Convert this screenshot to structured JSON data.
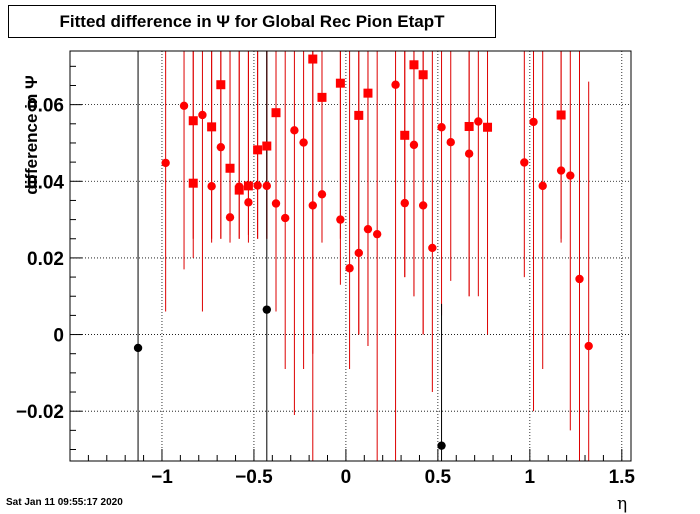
{
  "title": "Fitted difference in  Ψ  for Global Rec Pion EtapT",
  "timestamp": "Sat Jan 11 09:55:17 2020",
  "chart_data": {
    "type": "scatter",
    "xlabel": "η",
    "ylabel": "difference in  Ψ",
    "xlim": [
      -1.5,
      1.55
    ],
    "ylim": [
      -0.033,
      0.074
    ],
    "x_ticks": [
      -1,
      -0.5,
      0,
      0.5,
      1,
      1.5
    ],
    "x_tick_labels": [
      "−1",
      "−0.5",
      "0",
      "0.5",
      "1",
      "1.5"
    ],
    "y_ticks": [
      -0.02,
      0,
      0.02,
      0.04,
      0.06
    ],
    "y_tick_labels": [
      "−0.02",
      "0",
      "0.02",
      "0.04",
      "0.06"
    ],
    "grid": true,
    "series": [
      {
        "color": "#ff0000",
        "err_color": "#dd0000",
        "points": [
          {
            "x": -0.98,
            "y": 0.0448,
            "lo": 0.006,
            "hi": 0.074,
            "m": "c"
          },
          {
            "x": -0.88,
            "y": 0.0597,
            "lo": 0.017,
            "hi": 0.074,
            "m": "c"
          },
          {
            "x": -0.83,
            "y": 0.0558,
            "lo": 0.02,
            "hi": 0.074,
            "m": "s"
          },
          {
            "x": -0.83,
            "y": 0.0395,
            "lo": 0.025,
            "hi": 0.074,
            "m": "s"
          },
          {
            "x": -0.78,
            "y": 0.0573,
            "lo": 0.006,
            "hi": 0.074,
            "m": "c"
          },
          {
            "x": -0.73,
            "y": 0.0542,
            "lo": 0.024,
            "hi": 0.074,
            "m": "s"
          },
          {
            "x": -0.73,
            "y": 0.0387,
            "lo": 0.025,
            "hi": 0.074,
            "m": "c"
          },
          {
            "x": -0.68,
            "y": 0.0652,
            "lo": 0.025,
            "hi": 0.074,
            "m": "s"
          },
          {
            "x": -0.68,
            "y": 0.0489,
            "lo": 0.025,
            "hi": 0.074,
            "m": "c"
          },
          {
            "x": -0.63,
            "y": 0.0434,
            "lo": 0.024,
            "hi": 0.074,
            "m": "s"
          },
          {
            "x": -0.63,
            "y": 0.0306,
            "lo": 0.026,
            "hi": 0.074,
            "m": "c"
          },
          {
            "x": -0.58,
            "y": 0.0377,
            "lo": 0.025,
            "hi": 0.074,
            "m": "s"
          },
          {
            "x": -0.58,
            "y": 0.0386,
            "lo": 0.025,
            "hi": 0.074,
            "m": "c"
          },
          {
            "x": -0.53,
            "y": 0.0388,
            "lo": 0.024,
            "hi": 0.074,
            "m": "s"
          },
          {
            "x": -0.53,
            "y": 0.0345,
            "lo": 0.026,
            "hi": 0.074,
            "m": "c"
          },
          {
            "x": -0.48,
            "y": 0.0482,
            "lo": 0.025,
            "hi": 0.074,
            "m": "s"
          },
          {
            "x": -0.48,
            "y": 0.0389,
            "lo": 0.025,
            "hi": 0.074,
            "m": "c"
          },
          {
            "x": -0.43,
            "y": 0.0492,
            "lo": 0.025,
            "hi": 0.074,
            "m": "s"
          },
          {
            "x": -0.43,
            "y": 0.0388,
            "lo": 0.025,
            "hi": 0.074,
            "m": "c"
          },
          {
            "x": -0.38,
            "y": 0.0579,
            "lo": 0.024,
            "hi": 0.074,
            "m": "s"
          },
          {
            "x": -0.38,
            "y": 0.0342,
            "lo": 0.006,
            "hi": 0.074,
            "m": "c"
          },
          {
            "x": -0.33,
            "y": 0.0304,
            "lo": -0.009,
            "hi": 0.074,
            "m": "c"
          },
          {
            "x": -0.28,
            "y": 0.0533,
            "lo": -0.021,
            "hi": 0.074,
            "m": "c"
          },
          {
            "x": -0.23,
            "y": 0.0501,
            "lo": -0.009,
            "hi": 0.074,
            "m": "c"
          },
          {
            "x": -0.18,
            "y": 0.0719,
            "lo": -0.033,
            "hi": 0.074,
            "m": "s"
          },
          {
            "x": -0.18,
            "y": 0.0337,
            "lo": -0.005,
            "hi": 0.074,
            "m": "c"
          },
          {
            "x": -0.13,
            "y": 0.0619,
            "lo": 0.024,
            "hi": 0.074,
            "m": "s"
          },
          {
            "x": -0.13,
            "y": 0.0366,
            "lo": 0.025,
            "hi": 0.074,
            "m": "c"
          },
          {
            "x": -0.03,
            "y": 0.0656,
            "lo": 0.025,
            "hi": 0.074,
            "m": "s"
          },
          {
            "x": -0.03,
            "y": 0.03,
            "lo": 0.013,
            "hi": 0.074,
            "m": "c"
          },
          {
            "x": 0.02,
            "y": 0.0173,
            "lo": -0.009,
            "hi": 0.074,
            "m": "c"
          },
          {
            "x": 0.07,
            "y": 0.0572,
            "lo": 0.0,
            "hi": 0.074,
            "m": "s"
          },
          {
            "x": 0.07,
            "y": 0.0213,
            "lo": 0.0,
            "hi": 0.074,
            "m": "c"
          },
          {
            "x": 0.12,
            "y": 0.063,
            "lo": -0.003,
            "hi": 0.074,
            "m": "s"
          },
          {
            "x": 0.12,
            "y": 0.0275,
            "lo": -0.003,
            "hi": 0.074,
            "m": "c"
          },
          {
            "x": 0.17,
            "y": 0.0262,
            "lo": -0.033,
            "hi": 0.074,
            "m": "c"
          },
          {
            "x": 0.27,
            "y": 0.0652,
            "lo": -0.033,
            "hi": 0.074,
            "m": "c"
          },
          {
            "x": 0.32,
            "y": 0.052,
            "lo": 0.015,
            "hi": 0.074,
            "m": "s"
          },
          {
            "x": 0.32,
            "y": 0.0343,
            "lo": 0.015,
            "hi": 0.074,
            "m": "c"
          },
          {
            "x": 0.37,
            "y": 0.0704,
            "lo": 0.01,
            "hi": 0.074,
            "m": "s"
          },
          {
            "x": 0.37,
            "y": 0.0495,
            "lo": 0.01,
            "hi": 0.074,
            "m": "c"
          },
          {
            "x": 0.42,
            "y": 0.0678,
            "lo": 0.0,
            "hi": 0.074,
            "m": "s"
          },
          {
            "x": 0.42,
            "y": 0.0337,
            "lo": 0.0,
            "hi": 0.074,
            "m": "c"
          },
          {
            "x": 0.47,
            "y": 0.0226,
            "lo": -0.015,
            "hi": 0.074,
            "m": "c"
          },
          {
            "x": 0.52,
            "y": 0.0541,
            "lo": 0.005,
            "hi": 0.074,
            "m": "c"
          },
          {
            "x": 0.57,
            "y": 0.0502,
            "lo": 0.014,
            "hi": 0.074,
            "m": "c"
          },
          {
            "x": 0.67,
            "y": 0.0543,
            "lo": 0.01,
            "hi": 0.074,
            "m": "s"
          },
          {
            "x": 0.67,
            "y": 0.0472,
            "lo": 0.01,
            "hi": 0.074,
            "m": "c"
          },
          {
            "x": 0.72,
            "y": 0.0556,
            "lo": 0.01,
            "hi": 0.074,
            "m": "c"
          },
          {
            "x": 0.77,
            "y": 0.0541,
            "lo": 0.0,
            "hi": 0.074,
            "m": "s"
          },
          {
            "x": 0.97,
            "y": 0.0449,
            "lo": 0.015,
            "hi": 0.074,
            "m": "c"
          },
          {
            "x": 1.02,
            "y": 0.0555,
            "lo": -0.02,
            "hi": 0.074,
            "m": "c"
          },
          {
            "x": 1.07,
            "y": 0.0388,
            "lo": -0.009,
            "hi": 0.074,
            "m": "c"
          },
          {
            "x": 1.17,
            "y": 0.0573,
            "lo": 0.024,
            "hi": 0.074,
            "m": "s"
          },
          {
            "x": 1.17,
            "y": 0.0428,
            "lo": 0.025,
            "hi": 0.074,
            "m": "c"
          },
          {
            "x": 1.22,
            "y": 0.0415,
            "lo": -0.025,
            "hi": 0.074,
            "m": "c"
          },
          {
            "x": 1.27,
            "y": 0.0145,
            "lo": -0.033,
            "hi": 0.074,
            "m": "c"
          },
          {
            "x": 1.32,
            "y": -0.003,
            "lo": -0.033,
            "hi": 0.066,
            "m": "c"
          }
        ]
      },
      {
        "color": "#000000",
        "err_color": "#000000",
        "points": [
          {
            "x": -1.13,
            "y": -0.0035,
            "lo": -0.033,
            "hi": 0.074,
            "m": "c"
          },
          {
            "x": -0.43,
            "y": 0.0065,
            "lo": -0.033,
            "hi": 0.074,
            "m": "c"
          },
          {
            "x": 0.52,
            "y": -0.029,
            "lo": -0.033,
            "hi": 0.008,
            "m": "c"
          }
        ]
      }
    ]
  }
}
